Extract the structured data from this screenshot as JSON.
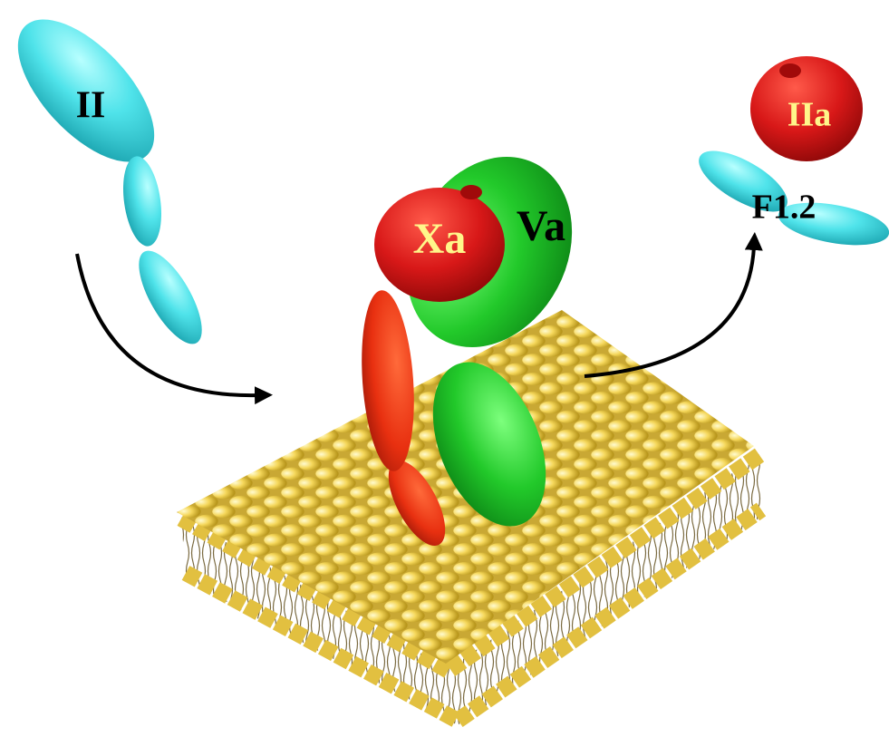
{
  "nodes": [
    {
      "label": "II"
    },
    {
      "label": "Xa"
    },
    {
      "label": "Va"
    },
    {
      "label": "IIa"
    },
    {
      "label": "F1.2"
    }
  ]
}
